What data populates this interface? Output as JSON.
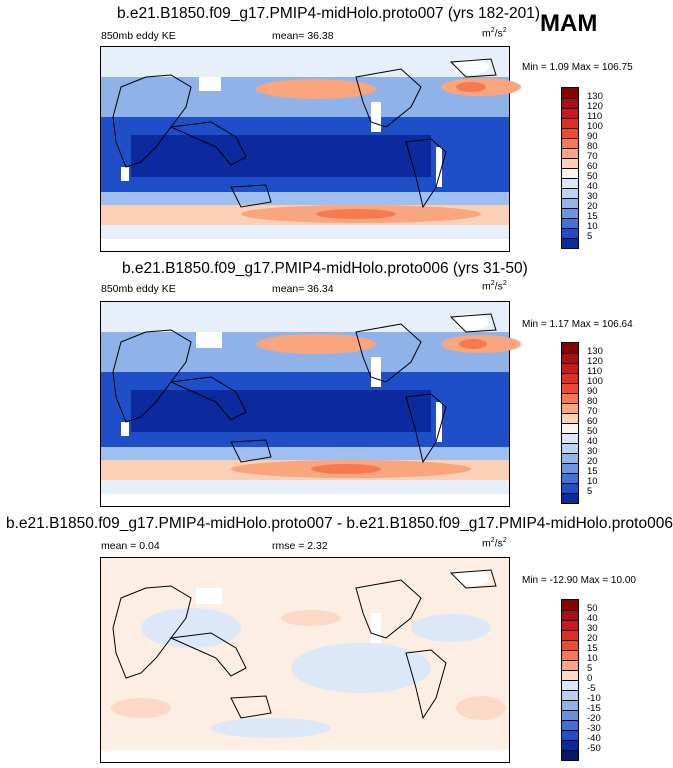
{
  "season": "MAM",
  "panels": [
    {
      "title": "b.e21.B1850.f09_g17.PMIP4-midHolo.proto007 (yrs 182-201)",
      "left_label": "850mb eddy KE",
      "center_label": "mean=  36.38",
      "units_base": "m",
      "units_exp1": "2",
      "units_mid": "/s",
      "units_exp2": "2",
      "minmax": "Min =   1.09 Max = 106.75",
      "colorbar": {
        "labels": [
          "130",
          "120",
          "110",
          "100",
          "90",
          "80",
          "70",
          "60",
          "50",
          "40",
          "30",
          "20",
          "15",
          "10",
          "5"
        ],
        "colors": [
          "#8b0000",
          "#a50f15",
          "#cb181d",
          "#e0301e",
          "#ef4a2e",
          "#f57a52",
          "#f9a57e",
          "#fcd0b7",
          "#fdf3ee",
          "#dbe7f7",
          "#bcd3f1",
          "#93b6ea",
          "#6b95e0",
          "#4272d6",
          "#1f4fc8",
          "#0a2a9e"
        ]
      }
    },
    {
      "title": "b.e21.B1850.f09_g17.PMIP4-midHolo.proto006 (yrs 31-50)",
      "left_label": "850mb eddy KE",
      "center_label": "mean=  36.34",
      "units_base": "m",
      "units_exp1": "2",
      "units_mid": "/s",
      "units_exp2": "2",
      "minmax": "Min =   1.17 Max = 106.64",
      "colorbar": {
        "labels": [
          "130",
          "120",
          "110",
          "100",
          "90",
          "80",
          "70",
          "60",
          "50",
          "40",
          "30",
          "20",
          "15",
          "10",
          "5"
        ],
        "colors": [
          "#8b0000",
          "#a50f15",
          "#cb181d",
          "#e0301e",
          "#ef4a2e",
          "#f57a52",
          "#f9a57e",
          "#fcd0b7",
          "#fdf3ee",
          "#dbe7f7",
          "#bcd3f1",
          "#93b6ea",
          "#6b95e0",
          "#4272d6",
          "#1f4fc8",
          "#0a2a9e"
        ]
      }
    },
    {
      "title": "b.e21.B1850.f09_g17.PMIP4-midHolo.proto007 - b.e21.B1850.f09_g17.PMIP4-midHolo.proto006",
      "left_label": "mean =   0.04",
      "center_label": "rmse =   2.32",
      "units_base": "m",
      "units_exp1": "2",
      "units_mid": "/s",
      "units_exp2": "2",
      "minmax": "Min = -12.90 Max =  10.00",
      "colorbar": {
        "labels": [
          "50",
          "40",
          "30",
          "20",
          "15",
          "10",
          "5",
          "0",
          "-5",
          "-10",
          "-15",
          "-20",
          "-30",
          "-40",
          "-50"
        ],
        "colors": [
          "#8b0000",
          "#a50f15",
          "#cb181d",
          "#e0301e",
          "#ef4a2e",
          "#f57a52",
          "#f9a57e",
          "#fcd9c6",
          "#dce8f8",
          "#b8cff0",
          "#8fb2e8",
          "#6690de",
          "#3f6ed4",
          "#1f4fc8",
          "#0a2a9e",
          "#06186b"
        ]
      }
    }
  ]
}
